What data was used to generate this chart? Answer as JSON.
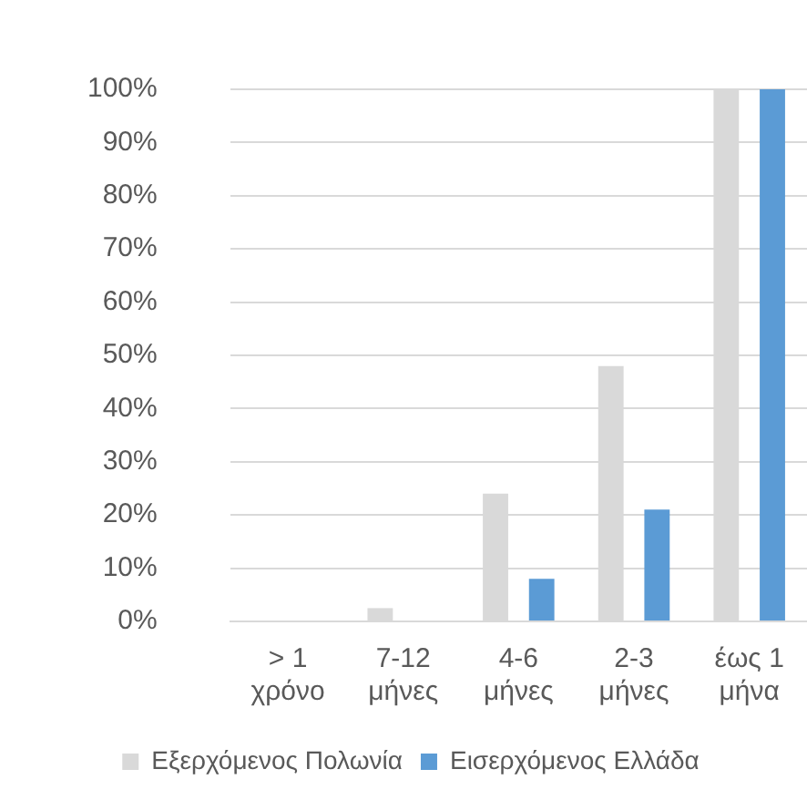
{
  "chart_data": {
    "type": "bar",
    "categories": [
      "> 1 χρόνο",
      "7-12 μήνες",
      "4-6 μήνες",
      "2-3 μήνες",
      "έως 1 μήνα"
    ],
    "series": [
      {
        "name": "Εξερχόμενος Πολωνία",
        "color": "#d9d9d9",
        "values": [
          0,
          2.5,
          24,
          48,
          100
        ]
      },
      {
        "name": "Εισερχόμενος Ελλάδα",
        "color": "#5b9bd5",
        "values": [
          0,
          null,
          8,
          21,
          100
        ]
      }
    ],
    "ylim": [
      0,
      100
    ],
    "yticks": [
      {
        "value": 0,
        "label": "0%"
      },
      {
        "value": 10,
        "label": "10%"
      },
      {
        "value": 20,
        "label": "20%"
      },
      {
        "value": 30,
        "label": "30%"
      },
      {
        "value": 40,
        "label": "40%"
      },
      {
        "value": 50,
        "label": "50%"
      },
      {
        "value": 60,
        "label": "60%"
      },
      {
        "value": 70,
        "label": "70%"
      },
      {
        "value": 80,
        "label": "80%"
      },
      {
        "value": 90,
        "label": "90%"
      },
      {
        "value": 100,
        "label": "100%"
      }
    ],
    "grid": "y",
    "legend": "bottom"
  }
}
